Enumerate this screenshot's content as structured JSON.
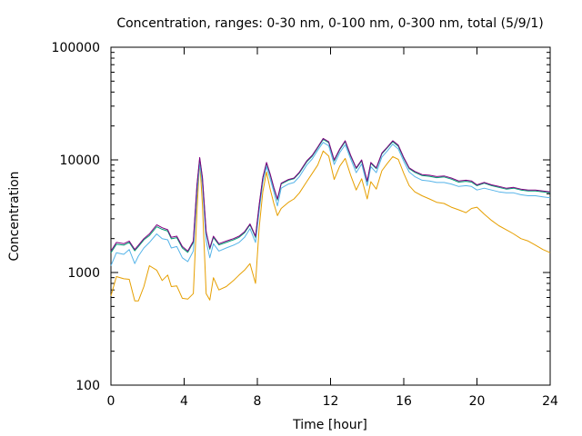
{
  "chart_data": {
    "type": "line",
    "title": "Concentration, ranges: 0-30 nm, 0-100 nm, 0-300 nm, total (5/9/1)",
    "xlabel": "Time [hour]",
    "ylabel": "Concentration",
    "xlim": [
      0,
      24
    ],
    "ylim": [
      100,
      100000
    ],
    "yscale": "log",
    "grid": false,
    "legend": "none",
    "xticks": [
      0,
      4,
      8,
      12,
      16,
      20,
      24
    ],
    "xtick_labels": [
      "0",
      "4",
      "8",
      "12",
      "16",
      "20",
      "24"
    ],
    "yticks": [
      100,
      1000,
      10000,
      100000
    ],
    "ytick_labels": [
      "100",
      "1000",
      "10000",
      "100000"
    ],
    "series": [
      {
        "color": "#800080",
        "x": [
          0,
          0.3,
          0.7,
          1.0,
          1.3,
          1.5,
          1.8,
          2.1,
          2.5,
          2.8,
          3.1,
          3.3,
          3.6,
          3.9,
          4.2,
          4.5,
          4.7,
          4.85,
          5.0,
          5.2,
          5.4,
          5.6,
          5.9,
          6.3,
          6.7,
          7.0,
          7.3,
          7.6,
          7.9,
          8.1,
          8.3,
          8.5,
          8.7,
          8.9,
          9.1,
          9.3,
          9.7,
          10.0,
          10.3,
          10.7,
          11.0,
          11.3,
          11.6,
          11.9,
          12.2,
          12.5,
          12.8,
          13.1,
          13.4,
          13.7,
          14.0,
          14.2,
          14.5,
          14.8,
          15.1,
          15.4,
          15.7,
          16.0,
          16.3,
          16.6,
          17.0,
          17.4,
          17.8,
          18.2,
          18.6,
          19.0,
          19.4,
          19.7,
          20.0,
          20.4,
          20.8,
          21.2,
          21.6,
          22.0,
          22.4,
          22.8,
          23.2,
          23.6,
          24.0
        ],
        "values": [
          1550,
          1850,
          1800,
          1900,
          1600,
          1750,
          2000,
          2200,
          2650,
          2500,
          2400,
          2050,
          2100,
          1700,
          1550,
          1900,
          6000,
          10500,
          7000,
          2300,
          1650,
          2100,
          1800,
          1900,
          2000,
          2100,
          2300,
          2700,
          2100,
          4000,
          7000,
          9500,
          7500,
          5700,
          4500,
          6200,
          6700,
          6900,
          7800,
          9800,
          11000,
          13000,
          15500,
          14500,
          10000,
          12500,
          14800,
          11000,
          8500,
          10000,
          6500,
          9500,
          8500,
          11500,
          13000,
          14800,
          13500,
          10500,
          8500,
          7900,
          7400,
          7300,
          7100,
          7200,
          6900,
          6500,
          6600,
          6500,
          6000,
          6300,
          6000,
          5800,
          5600,
          5700,
          5500,
          5400,
          5400,
          5300,
          5200
        ]
      },
      {
        "color": "#009E73",
        "x": [
          0,
          0.3,
          0.7,
          1.0,
          1.3,
          1.5,
          1.8,
          2.1,
          2.5,
          2.8,
          3.1,
          3.3,
          3.6,
          3.9,
          4.2,
          4.5,
          4.7,
          4.85,
          5.0,
          5.2,
          5.4,
          5.6,
          5.9,
          6.3,
          6.7,
          7.0,
          7.3,
          7.6,
          7.9,
          8.1,
          8.3,
          8.5,
          8.7,
          8.9,
          9.1,
          9.3,
          9.7,
          10.0,
          10.3,
          10.7,
          11.0,
          11.3,
          11.6,
          11.9,
          12.2,
          12.5,
          12.8,
          13.1,
          13.4,
          13.7,
          14.0,
          14.2,
          14.5,
          14.8,
          15.1,
          15.4,
          15.7,
          16.0,
          16.3,
          16.6,
          17.0,
          17.4,
          17.8,
          18.2,
          18.6,
          19.0,
          19.4,
          19.7,
          20.0,
          20.4,
          20.8,
          21.2,
          21.6,
          22.0,
          22.4,
          22.8,
          23.2,
          23.6,
          24.0
        ],
        "values": [
          1500,
          1780,
          1750,
          1850,
          1560,
          1700,
          1950,
          2130,
          2550,
          2420,
          2330,
          1990,
          2040,
          1650,
          1510,
          1850,
          5900,
          10300,
          6850,
          2250,
          1610,
          2050,
          1760,
          1850,
          1950,
          2050,
          2250,
          2650,
          2050,
          3900,
          6900,
          9300,
          7350,
          5600,
          4400,
          6100,
          6600,
          6800,
          7650,
          9600,
          10800,
          12800,
          15200,
          14200,
          9800,
          12300,
          14500,
          10800,
          8350,
          9800,
          6400,
          9300,
          8350,
          11300,
          12800,
          14500,
          13200,
          10300,
          8350,
          7750,
          7250,
          7150,
          6950,
          7050,
          6750,
          6350,
          6450,
          6350,
          5900,
          6200,
          5900,
          5700,
          5500,
          5600,
          5400,
          5300,
          5300,
          5200,
          5100
        ]
      },
      {
        "color": "#56B4E9",
        "x": [
          0,
          0.3,
          0.7,
          1.0,
          1.3,
          1.5,
          1.8,
          2.1,
          2.5,
          2.8,
          3.1,
          3.3,
          3.6,
          3.9,
          4.2,
          4.5,
          4.7,
          4.85,
          5.0,
          5.2,
          5.4,
          5.6,
          5.9,
          6.3,
          6.7,
          7.0,
          7.3,
          7.6,
          7.9,
          8.1,
          8.3,
          8.5,
          8.7,
          8.9,
          9.1,
          9.3,
          9.7,
          10.0,
          10.3,
          10.7,
          11.0,
          11.3,
          11.6,
          11.9,
          12.2,
          12.5,
          12.8,
          13.1,
          13.4,
          13.7,
          14.0,
          14.2,
          14.5,
          14.8,
          15.1,
          15.4,
          15.7,
          16.0,
          16.3,
          16.6,
          17.0,
          17.4,
          17.8,
          18.2,
          18.6,
          19.0,
          19.4,
          19.7,
          20.0,
          20.4,
          20.8,
          21.2,
          21.6,
          22.0,
          22.4,
          22.8,
          23.2,
          23.6,
          24.0
        ],
        "values": [
          1150,
          1500,
          1450,
          1600,
          1200,
          1400,
          1650,
          1850,
          2200,
          2000,
          1950,
          1650,
          1700,
          1350,
          1250,
          1550,
          5000,
          9300,
          6000,
          1900,
          1350,
          1800,
          1550,
          1650,
          1750,
          1850,
          2050,
          2450,
          1850,
          3500,
          6300,
          8700,
          6800,
          5200,
          3900,
          5600,
          6100,
          6300,
          7100,
          9000,
          10200,
          12200,
          14300,
          13300,
          9100,
          11600,
          13600,
          10200,
          7700,
          9200,
          5900,
          8700,
          7700,
          10600,
          12000,
          13800,
          12500,
          9700,
          7800,
          7100,
          6600,
          6500,
          6300,
          6300,
          6100,
          5800,
          5900,
          5800,
          5400,
          5600,
          5400,
          5200,
          5100,
          5100,
          4900,
          4800,
          4800,
          4700,
          4600
        ]
      },
      {
        "color": "#E69F00",
        "x": [
          0,
          0.3,
          0.7,
          1.0,
          1.3,
          1.5,
          1.8,
          2.1,
          2.5,
          2.8,
          3.1,
          3.3,
          3.6,
          3.9,
          4.2,
          4.5,
          4.7,
          4.85,
          5.0,
          5.2,
          5.4,
          5.6,
          5.9,
          6.3,
          6.7,
          7.0,
          7.3,
          7.6,
          7.9,
          8.1,
          8.3,
          8.5,
          8.7,
          8.9,
          9.1,
          9.3,
          9.7,
          10.0,
          10.3,
          10.7,
          11.0,
          11.3,
          11.6,
          11.9,
          12.2,
          12.5,
          12.8,
          13.1,
          13.4,
          13.7,
          14.0,
          14.2,
          14.5,
          14.8,
          15.1,
          15.4,
          15.7,
          16.0,
          16.3,
          16.6,
          17.0,
          17.4,
          17.8,
          18.2,
          18.6,
          19.0,
          19.4,
          19.7,
          20.0,
          20.4,
          20.8,
          21.2,
          21.6,
          22.0,
          22.4,
          22.8,
          23.2,
          23.6,
          24.0
        ],
        "values": [
          620,
          920,
          880,
          870,
          560,
          560,
          750,
          1150,
          1050,
          850,
          950,
          750,
          760,
          590,
          580,
          650,
          3500,
          9800,
          4000,
          650,
          570,
          900,
          700,
          750,
          850,
          950,
          1050,
          1200,
          800,
          2500,
          5200,
          7800,
          5500,
          4100,
          3200,
          3700,
          4200,
          4500,
          5100,
          6400,
          7600,
          9000,
          12000,
          10800,
          6700,
          8800,
          10300,
          7300,
          5400,
          6800,
          4500,
          6400,
          5500,
          8000,
          9300,
          10700,
          10100,
          7600,
          5900,
          5200,
          4800,
          4500,
          4200,
          4100,
          3800,
          3600,
          3400,
          3700,
          3800,
          3300,
          2900,
          2600,
          2400,
          2200,
          2000,
          1900,
          1750,
          1600,
          1500
        ]
      }
    ]
  }
}
